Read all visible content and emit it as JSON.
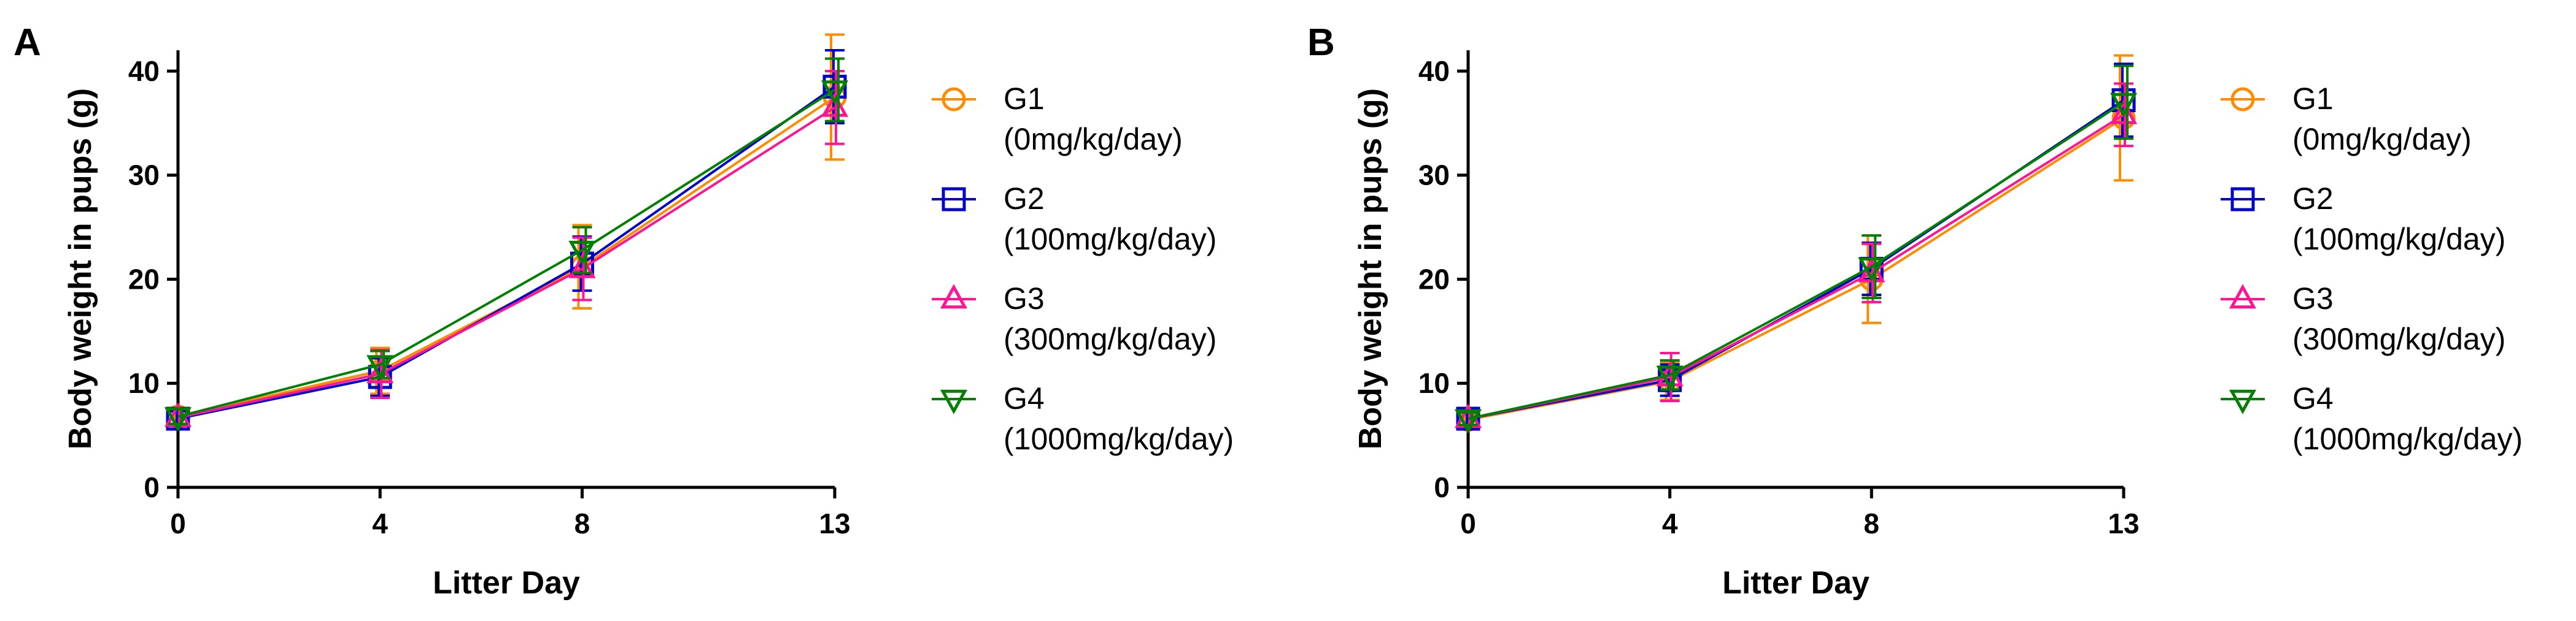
{
  "chart_data": [
    {
      "panel_label": "A",
      "type": "line",
      "xlabel": "Litter Day",
      "ylabel": "Body weight in pups (g)",
      "x": [
        0,
        4,
        8,
        13
      ],
      "x_ticks": [
        "0",
        "4",
        "8",
        "13"
      ],
      "ylim": [
        0,
        42
      ],
      "y_ticks": [
        0,
        10,
        20,
        30,
        40
      ],
      "legend_position": "right",
      "series": [
        {
          "name": "G1",
          "dose": "(0mg/kg/day)",
          "color": "#FF8C00",
          "marker": "circle",
          "values": [
            6.8,
            11.2,
            21.2,
            37.5
          ],
          "errors": [
            0.8,
            2.2,
            4.0,
            6.0
          ]
        },
        {
          "name": "G2",
          "dose": "(100mg/kg/day)",
          "color": "#0000CC",
          "marker": "square",
          "values": [
            6.6,
            10.6,
            21.5,
            38.5
          ],
          "errors": [
            0.7,
            1.8,
            2.6,
            3.5
          ]
        },
        {
          "name": "G3",
          "dose": "(300mg/kg/day)",
          "color": "#FF1493",
          "marker": "triangle-up",
          "values": [
            6.7,
            10.9,
            21.0,
            36.5
          ],
          "errors": [
            0.8,
            2.3,
            3.0,
            3.5
          ]
        },
        {
          "name": "G4",
          "dose": "(1000mg/kg/day)",
          "color": "#008000",
          "marker": "triangle-down",
          "values": [
            6.8,
            11.8,
            22.8,
            38.2
          ],
          "errors": [
            0.7,
            1.3,
            2.2,
            3.0
          ]
        }
      ]
    },
    {
      "panel_label": "B",
      "type": "line",
      "xlabel": "Litter Day",
      "ylabel": "Body weight in pups (g)",
      "x": [
        0,
        4,
        8,
        13
      ],
      "x_ticks": [
        "0",
        "4",
        "8",
        "13"
      ],
      "ylim": [
        0,
        42
      ],
      "y_ticks": [
        0,
        10,
        20,
        30,
        40
      ],
      "legend_position": "right",
      "series": [
        {
          "name": "G1",
          "dose": "(0mg/kg/day)",
          "color": "#FF8C00",
          "marker": "circle",
          "values": [
            6.5,
            10.2,
            20.0,
            35.5
          ],
          "errors": [
            0.6,
            1.8,
            4.2,
            6.0
          ]
        },
        {
          "name": "G2",
          "dose": "(100mg/kg/day)",
          "color": "#0000CC",
          "marker": "square",
          "values": [
            6.6,
            10.3,
            21.0,
            37.2
          ],
          "errors": [
            0.6,
            1.5,
            2.5,
            3.5
          ]
        },
        {
          "name": "G3",
          "dose": "(300mg/kg/day)",
          "color": "#FF1493",
          "marker": "triangle-up",
          "values": [
            6.6,
            10.6,
            20.6,
            35.8
          ],
          "errors": [
            0.6,
            2.3,
            2.8,
            3.0
          ]
        },
        {
          "name": "G4",
          "dose": "(1000mg/kg/day)",
          "color": "#008000",
          "marker": "triangle-down",
          "values": [
            6.6,
            10.8,
            21.2,
            37.0
          ],
          "errors": [
            0.6,
            1.4,
            3.0,
            3.5
          ]
        }
      ]
    }
  ]
}
